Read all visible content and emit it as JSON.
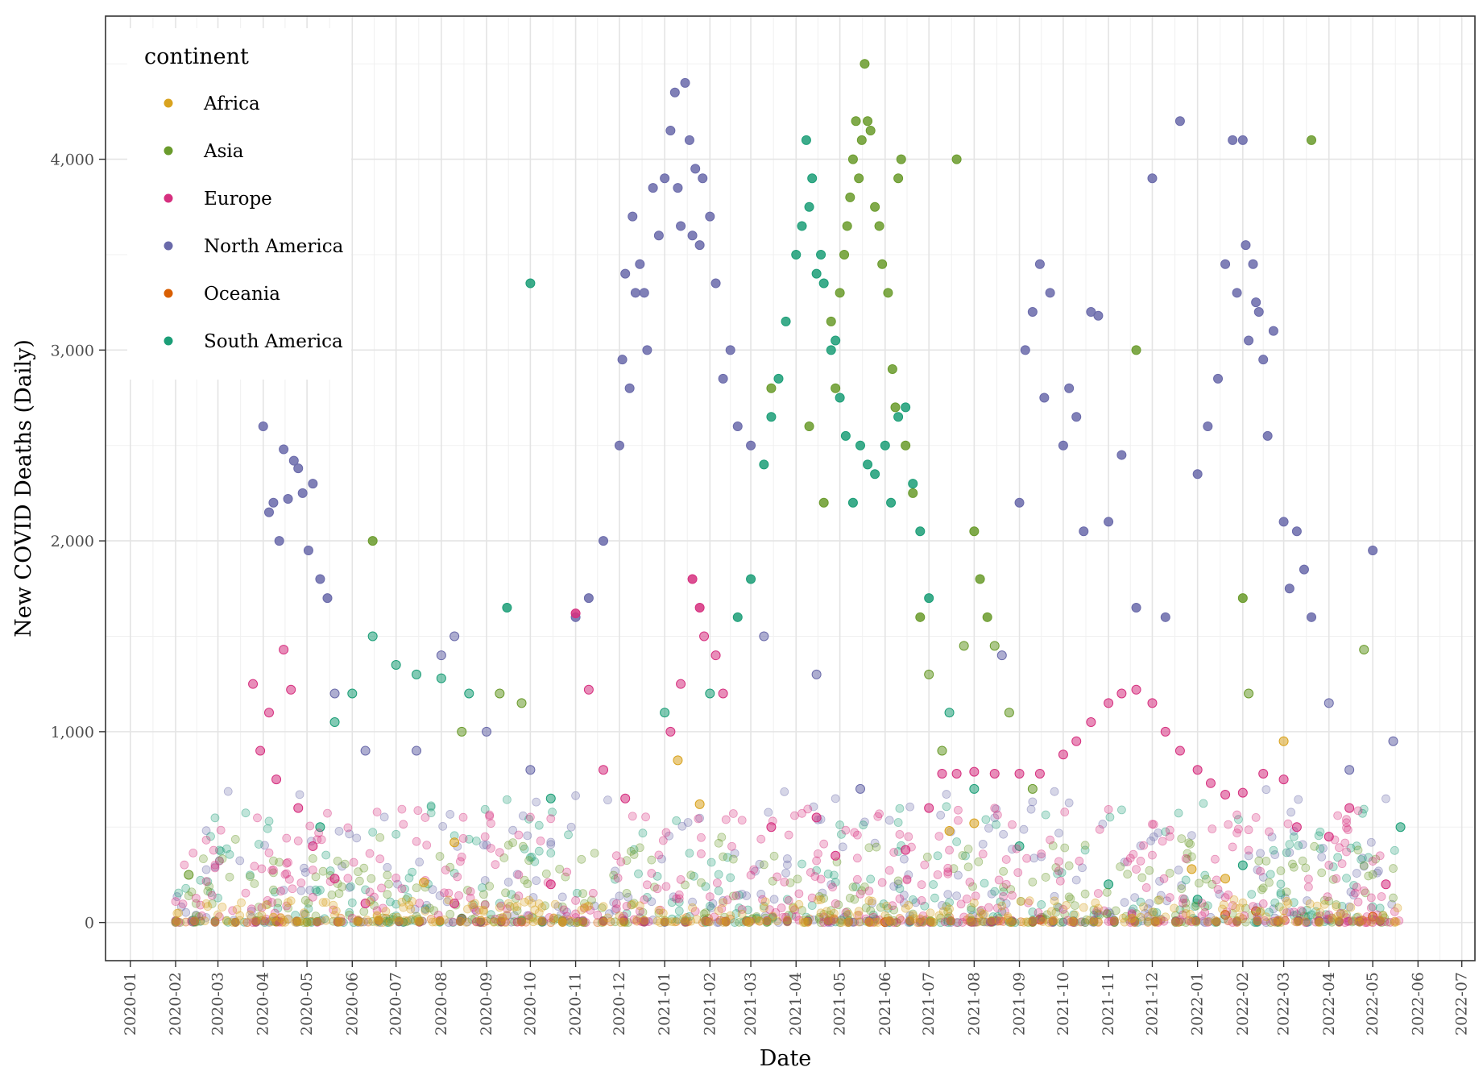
{
  "chart_data": {
    "type": "scatter",
    "title": "",
    "xlabel": "Date",
    "ylabel": "New COVID Deaths (Daily)",
    "xlim": [
      "2019-12-15",
      "2022-07-10"
    ],
    "ylim": [
      -200,
      4750
    ],
    "x_ticks": [
      "2020-01",
      "2020-02",
      "2020-03",
      "2020-04",
      "2020-05",
      "2020-06",
      "2020-07",
      "2020-08",
      "2020-09",
      "2020-10",
      "2020-11",
      "2020-12",
      "2021-01",
      "2021-02",
      "2021-03",
      "2021-04",
      "2021-05",
      "2021-06",
      "2021-07",
      "2021-08",
      "2021-09",
      "2021-10",
      "2021-11",
      "2021-12",
      "2022-01",
      "2022-02",
      "2022-03",
      "2022-04",
      "2022-05",
      "2022-06",
      "2022-07"
    ],
    "y_ticks": [
      0,
      1000,
      2000,
      3000,
      4000
    ],
    "y_tick_labels": [
      "0",
      "1,000",
      "2,000",
      "3,000",
      "4,000"
    ],
    "grid": true,
    "legend": {
      "title": "continent",
      "placement": "top-left inside",
      "entries": [
        "Africa",
        "Asia",
        "Europe",
        "North America",
        "Oceania",
        "South America"
      ]
    },
    "series": [
      {
        "name": "Africa",
        "color": "#d9a31f",
        "points": [
          [
            "2020-07-20",
            210
          ],
          [
            "2020-08-10",
            420
          ],
          [
            "2021-01-10",
            850
          ],
          [
            "2021-01-25",
            620
          ],
          [
            "2021-07-15",
            480
          ],
          [
            "2021-08-01",
            520
          ],
          [
            "2021-12-28",
            280
          ],
          [
            "2022-01-20",
            230
          ],
          [
            "2022-03-01",
            950
          ]
        ]
      },
      {
        "name": "Asia",
        "color": "#6a9b2c",
        "points": [
          [
            "2020-02-10",
            250
          ],
          [
            "2020-06-15",
            2000
          ],
          [
            "2020-08-15",
            1000
          ],
          [
            "2020-09-10",
            1200
          ],
          [
            "2020-09-25",
            1150
          ],
          [
            "2021-03-15",
            2800
          ],
          [
            "2021-04-10",
            2600
          ],
          [
            "2021-04-20",
            2200
          ],
          [
            "2021-04-25",
            3150
          ],
          [
            "2021-04-28",
            2800
          ],
          [
            "2021-05-01",
            3300
          ],
          [
            "2021-05-04",
            3500
          ],
          [
            "2021-05-06",
            3650
          ],
          [
            "2021-05-08",
            3800
          ],
          [
            "2021-05-10",
            4000
          ],
          [
            "2021-05-12",
            4200
          ],
          [
            "2021-05-14",
            3900
          ],
          [
            "2021-05-16",
            4100
          ],
          [
            "2021-05-18",
            4500
          ],
          [
            "2021-05-20",
            4200
          ],
          [
            "2021-05-22",
            4150
          ],
          [
            "2021-05-25",
            3750
          ],
          [
            "2021-05-28",
            3650
          ],
          [
            "2021-05-30",
            3450
          ],
          [
            "2021-06-03",
            3300
          ],
          [
            "2021-06-06",
            2900
          ],
          [
            "2021-06-08",
            2700
          ],
          [
            "2021-06-10",
            3900
          ],
          [
            "2021-06-12",
            4000
          ],
          [
            "2021-06-15",
            2500
          ],
          [
            "2021-06-20",
            2250
          ],
          [
            "2021-06-25",
            1600
          ],
          [
            "2021-07-01",
            1300
          ],
          [
            "2021-07-10",
            900
          ],
          [
            "2021-07-20",
            4000
          ],
          [
            "2021-07-25",
            1450
          ],
          [
            "2021-08-01",
            2050
          ],
          [
            "2021-08-05",
            1800
          ],
          [
            "2021-08-10",
            1600
          ],
          [
            "2021-08-15",
            1450
          ],
          [
            "2021-08-25",
            1100
          ],
          [
            "2021-09-10",
            700
          ],
          [
            "2021-11-20",
            3000
          ],
          [
            "2022-02-01",
            1700
          ],
          [
            "2022-02-05",
            1200
          ],
          [
            "2022-03-20",
            4100
          ],
          [
            "2022-04-25",
            1430
          ]
        ]
      },
      {
        "name": "Europe",
        "color": "#d6307f",
        "points": [
          [
            "2020-03-25",
            1250
          ],
          [
            "2020-03-30",
            900
          ],
          [
            "2020-04-05",
            1100
          ],
          [
            "2020-04-10",
            750
          ],
          [
            "2020-04-15",
            1430
          ],
          [
            "2020-04-20",
            1220
          ],
          [
            "2020-04-25",
            600
          ],
          [
            "2020-05-05",
            400
          ],
          [
            "2020-05-20",
            230
          ],
          [
            "2020-06-10",
            100
          ],
          [
            "2020-08-10",
            100
          ],
          [
            "2020-10-15",
            200
          ],
          [
            "2020-11-01",
            1620
          ],
          [
            "2020-11-10",
            1220
          ],
          [
            "2020-11-20",
            800
          ],
          [
            "2020-12-05",
            650
          ],
          [
            "2021-01-05",
            1000
          ],
          [
            "2021-01-12",
            1250
          ],
          [
            "2021-01-20",
            1800
          ],
          [
            "2021-01-25",
            1650
          ],
          [
            "2021-01-28",
            1500
          ],
          [
            "2021-02-05",
            1400
          ],
          [
            "2021-02-10",
            1200
          ],
          [
            "2021-03-15",
            500
          ],
          [
            "2021-04-15",
            550
          ],
          [
            "2021-04-28",
            350
          ],
          [
            "2021-06-15",
            380
          ],
          [
            "2021-07-01",
            600
          ],
          [
            "2021-07-10",
            780
          ],
          [
            "2021-07-20",
            780
          ],
          [
            "2021-08-01",
            790
          ],
          [
            "2021-08-15",
            780
          ],
          [
            "2021-09-01",
            780
          ],
          [
            "2021-09-15",
            780
          ],
          [
            "2021-10-01",
            880
          ],
          [
            "2021-10-10",
            950
          ],
          [
            "2021-10-20",
            1050
          ],
          [
            "2021-11-01",
            1150
          ],
          [
            "2021-11-10",
            1200
          ],
          [
            "2021-11-20",
            1220
          ],
          [
            "2021-12-01",
            1150
          ],
          [
            "2021-12-10",
            1000
          ],
          [
            "2021-12-20",
            900
          ],
          [
            "2022-01-01",
            800
          ],
          [
            "2022-01-10",
            730
          ],
          [
            "2022-01-20",
            670
          ],
          [
            "2022-02-01",
            680
          ],
          [
            "2022-02-15",
            780
          ],
          [
            "2022-03-01",
            750
          ],
          [
            "2022-03-10",
            500
          ],
          [
            "2022-04-01",
            450
          ],
          [
            "2022-04-15",
            600
          ],
          [
            "2022-05-10",
            200
          ]
        ]
      },
      {
        "name": "North America",
        "color": "#6a6aaa",
        "points": [
          [
            "2020-04-01",
            2600
          ],
          [
            "2020-04-05",
            2150
          ],
          [
            "2020-04-08",
            2200
          ],
          [
            "2020-04-12",
            2000
          ],
          [
            "2020-04-15",
            2480
          ],
          [
            "2020-04-18",
            2220
          ],
          [
            "2020-04-22",
            2420
          ],
          [
            "2020-04-25",
            2380
          ],
          [
            "2020-04-28",
            2250
          ],
          [
            "2020-05-02",
            1950
          ],
          [
            "2020-05-05",
            2300
          ],
          [
            "2020-05-10",
            1800
          ],
          [
            "2020-05-15",
            1700
          ],
          [
            "2020-05-20",
            1200
          ],
          [
            "2020-06-10",
            900
          ],
          [
            "2020-07-15",
            900
          ],
          [
            "2020-08-01",
            1400
          ],
          [
            "2020-08-10",
            1500
          ],
          [
            "2020-09-01",
            1000
          ],
          [
            "2020-10-01",
            800
          ],
          [
            "2020-11-01",
            1600
          ],
          [
            "2020-11-10",
            1700
          ],
          [
            "2020-11-20",
            2000
          ],
          [
            "2020-12-01",
            2500
          ],
          [
            "2020-12-03",
            2950
          ],
          [
            "2020-12-05",
            3400
          ],
          [
            "2020-12-08",
            2800
          ],
          [
            "2020-12-10",
            3700
          ],
          [
            "2020-12-12",
            3300
          ],
          [
            "2020-12-15",
            3450
          ],
          [
            "2020-12-18",
            3300
          ],
          [
            "2020-12-20",
            3000
          ],
          [
            "2020-12-24",
            3850
          ],
          [
            "2020-12-28",
            3600
          ],
          [
            "2021-01-01",
            3900
          ],
          [
            "2021-01-05",
            4150
          ],
          [
            "2021-01-08",
            4350
          ],
          [
            "2021-01-10",
            3850
          ],
          [
            "2021-01-12",
            3650
          ],
          [
            "2021-01-15",
            4400
          ],
          [
            "2021-01-18",
            4100
          ],
          [
            "2021-01-20",
            3600
          ],
          [
            "2021-01-22",
            3950
          ],
          [
            "2021-01-25",
            3550
          ],
          [
            "2021-01-27",
            3900
          ],
          [
            "2021-02-01",
            3700
          ],
          [
            "2021-02-05",
            3350
          ],
          [
            "2021-02-10",
            2850
          ],
          [
            "2021-02-15",
            3000
          ],
          [
            "2021-02-20",
            2600
          ],
          [
            "2021-03-01",
            2500
          ],
          [
            "2021-03-10",
            1500
          ],
          [
            "2021-04-15",
            1300
          ],
          [
            "2021-05-15",
            700
          ],
          [
            "2021-08-20",
            1400
          ],
          [
            "2021-09-01",
            2200
          ],
          [
            "2021-09-05",
            3000
          ],
          [
            "2021-09-10",
            3200
          ],
          [
            "2021-09-15",
            3450
          ],
          [
            "2021-09-18",
            2750
          ],
          [
            "2021-09-22",
            3300
          ],
          [
            "2021-10-01",
            2500
          ],
          [
            "2021-10-05",
            2800
          ],
          [
            "2021-10-10",
            2650
          ],
          [
            "2021-10-15",
            2050
          ],
          [
            "2021-10-20",
            3200
          ],
          [
            "2021-10-25",
            3180
          ],
          [
            "2021-11-01",
            2100
          ],
          [
            "2021-11-10",
            2450
          ],
          [
            "2021-11-20",
            1650
          ],
          [
            "2021-12-01",
            3900
          ],
          [
            "2021-12-10",
            1600
          ],
          [
            "2021-12-20",
            4200
          ],
          [
            "2022-01-01",
            2350
          ],
          [
            "2022-01-08",
            2600
          ],
          [
            "2022-01-15",
            2850
          ],
          [
            "2022-01-20",
            3450
          ],
          [
            "2022-01-25",
            4100
          ],
          [
            "2022-01-28",
            3300
          ],
          [
            "2022-02-01",
            4100
          ],
          [
            "2022-02-03",
            3550
          ],
          [
            "2022-02-05",
            3050
          ],
          [
            "2022-02-08",
            3450
          ],
          [
            "2022-02-10",
            3250
          ],
          [
            "2022-02-12",
            3200
          ],
          [
            "2022-02-15",
            2950
          ],
          [
            "2022-02-18",
            2550
          ],
          [
            "2022-02-22",
            3100
          ],
          [
            "2022-03-01",
            2100
          ],
          [
            "2022-03-05",
            1750
          ],
          [
            "2022-03-10",
            2050
          ],
          [
            "2022-03-15",
            1850
          ],
          [
            "2022-03-20",
            1600
          ],
          [
            "2022-04-01",
            1150
          ],
          [
            "2022-04-15",
            800
          ],
          [
            "2022-05-01",
            1950
          ],
          [
            "2022-05-15",
            950
          ]
        ]
      },
      {
        "name": "Oceania",
        "color": "#d95f02",
        "points": [
          [
            "2020-04-10",
            5
          ],
          [
            "2020-08-15",
            20
          ],
          [
            "2021-06-01",
            2
          ],
          [
            "2021-09-15",
            15
          ],
          [
            "2022-01-20",
            40
          ],
          [
            "2022-02-10",
            60
          ],
          [
            "2022-05-01",
            30
          ]
        ]
      },
      {
        "name": "South America",
        "color": "#1b9e77",
        "points": [
          [
            "2020-05-10",
            500
          ],
          [
            "2020-05-20",
            1050
          ],
          [
            "2020-06-01",
            1200
          ],
          [
            "2020-06-15",
            1500
          ],
          [
            "2020-07-01",
            1350
          ],
          [
            "2020-07-15",
            1300
          ],
          [
            "2020-08-01",
            1280
          ],
          [
            "2020-08-20",
            1200
          ],
          [
            "2020-09-15",
            1650
          ],
          [
            "2020-10-01",
            3350
          ],
          [
            "2020-10-15",
            650
          ],
          [
            "2021-01-01",
            1100
          ],
          [
            "2021-02-01",
            1200
          ],
          [
            "2021-02-20",
            1600
          ],
          [
            "2021-03-01",
            1800
          ],
          [
            "2021-03-10",
            2400
          ],
          [
            "2021-03-15",
            2650
          ],
          [
            "2021-03-20",
            2850
          ],
          [
            "2021-03-25",
            3150
          ],
          [
            "2021-04-01",
            3500
          ],
          [
            "2021-04-05",
            3650
          ],
          [
            "2021-04-08",
            4100
          ],
          [
            "2021-04-10",
            3750
          ],
          [
            "2021-04-12",
            3900
          ],
          [
            "2021-04-15",
            3400
          ],
          [
            "2021-04-18",
            3500
          ],
          [
            "2021-04-20",
            3350
          ],
          [
            "2021-04-25",
            3000
          ],
          [
            "2021-04-28",
            3050
          ],
          [
            "2021-05-01",
            2750
          ],
          [
            "2021-05-05",
            2550
          ],
          [
            "2021-05-10",
            2200
          ],
          [
            "2021-05-15",
            2500
          ],
          [
            "2021-05-20",
            2400
          ],
          [
            "2021-05-25",
            2350
          ],
          [
            "2021-06-01",
            2500
          ],
          [
            "2021-06-05",
            2200
          ],
          [
            "2021-06-10",
            2650
          ],
          [
            "2021-06-15",
            2700
          ],
          [
            "2021-06-20",
            2300
          ],
          [
            "2021-06-25",
            2050
          ],
          [
            "2021-07-01",
            1700
          ],
          [
            "2021-07-15",
            1100
          ],
          [
            "2021-08-01",
            700
          ],
          [
            "2021-09-01",
            400
          ],
          [
            "2021-11-01",
            200
          ],
          [
            "2022-01-01",
            120
          ],
          [
            "2022-02-01",
            300
          ],
          [
            "2022-05-20",
            500
          ]
        ]
      }
    ]
  }
}
